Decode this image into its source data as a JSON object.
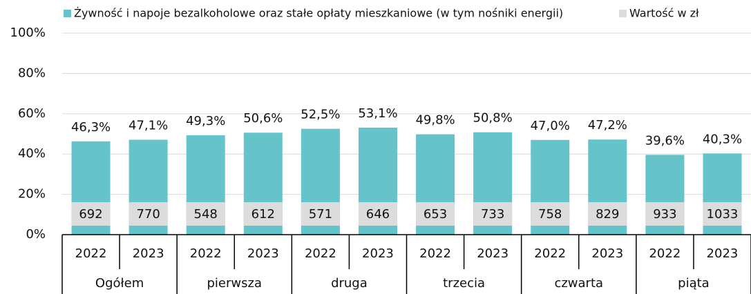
{
  "chart_data": {
    "type": "bar",
    "categories": [
      "2022",
      "2023",
      "2022",
      "2023",
      "2022",
      "2023",
      "2022",
      "2023",
      "2022",
      "2023",
      "2022",
      "2023"
    ],
    "groups": [
      "Ogółem",
      "pierwsza",
      "druga",
      "trzecia",
      "czwarta",
      "piąta"
    ],
    "series": [
      {
        "name": "Żywność i napoje bezalkoholowe oraz stałe opłaty mieszkaniowe (w tym nośniki energii)",
        "color": "#66c3c9",
        "values": [
          46.3,
          47.1,
          49.3,
          50.6,
          52.5,
          53.1,
          49.8,
          50.8,
          47.0,
          47.2,
          39.6,
          40.3
        ],
        "value_labels": [
          "46,3%",
          "47,1%",
          "49,3%",
          "50,6%",
          "52,5%",
          "53,1%",
          "49,8%",
          "50,8%",
          "47,0%",
          "47,2%",
          "39,6%",
          "40,3%"
        ]
      },
      {
        "name": "Wartość w zł",
        "color": "#dcdcdc",
        "values": [
          692,
          770,
          548,
          612,
          571,
          646,
          653,
          733,
          758,
          829,
          933,
          1033
        ]
      }
    ],
    "ylim": [
      0,
      100
    ],
    "yticks": [
      {
        "value": 0,
        "label": "0%"
      },
      {
        "value": 20,
        "label": "20%"
      },
      {
        "value": 40,
        "label": "40%"
      },
      {
        "value": 60,
        "label": "60%"
      },
      {
        "value": 80,
        "label": "80%"
      },
      {
        "value": 100,
        "label": "100%"
      }
    ],
    "grid": true
  }
}
